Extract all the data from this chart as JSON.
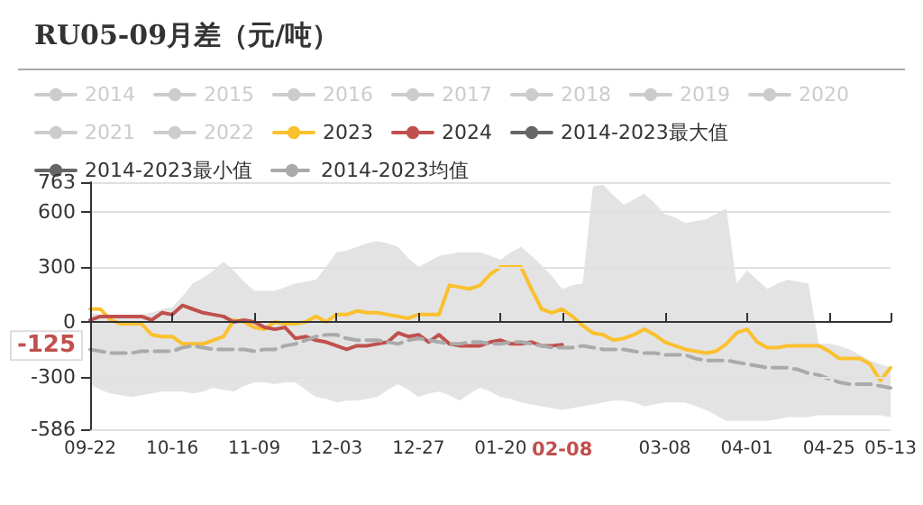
{
  "chart_data": {
    "type": "line",
    "title": "RU05-09月差（元/吨）",
    "categories": [
      "09-22",
      null,
      null,
      null,
      null,
      null,
      null,
      null,
      "10-16",
      null,
      null,
      null,
      null,
      null,
      null,
      null,
      "11-09",
      null,
      null,
      null,
      null,
      null,
      null,
      null,
      "12-03",
      null,
      null,
      null,
      null,
      null,
      null,
      null,
      "12-27",
      null,
      null,
      null,
      null,
      null,
      null,
      null,
      "01-20",
      null,
      null,
      null,
      null,
      null,
      "02-08",
      null,
      null,
      null,
      null,
      null,
      null,
      null,
      null,
      null,
      "03-08",
      null,
      null,
      null,
      null,
      null,
      null,
      null,
      "04-01",
      null,
      null,
      null,
      null,
      null,
      null,
      null,
      "04-25",
      null,
      null,
      null,
      null,
      null,
      "05-13"
    ],
    "series": [
      {
        "name": "2014",
        "color": "#cccccc",
        "values": [
          null,
          null,
          null,
          null,
          null,
          null,
          null,
          null,
          null,
          null,
          null,
          null,
          null,
          null,
          null,
          null,
          null,
          null,
          null,
          null,
          null,
          null,
          null,
          null,
          null,
          null,
          null,
          null,
          null,
          null,
          null,
          null,
          null,
          null,
          null,
          null,
          null,
          null,
          null,
          null,
          null,
          null,
          null,
          null,
          null,
          null,
          null,
          null,
          null,
          null,
          null,
          null,
          null,
          null,
          null,
          null,
          null,
          null,
          null,
          null,
          null,
          null,
          null,
          null,
          null,
          null,
          null,
          null,
          null,
          null,
          null,
          null,
          null,
          null,
          null,
          null,
          null,
          null,
          null
        ]
      },
      {
        "name": "2015",
        "color": "#cccccc",
        "values": [
          null,
          null,
          null,
          null,
          null,
          null,
          null,
          null,
          null,
          null,
          null,
          null,
          null,
          null,
          null,
          null,
          null,
          null,
          null,
          null,
          null,
          null,
          null,
          null,
          null,
          null,
          null,
          null,
          null,
          null,
          null,
          null,
          null,
          null,
          null,
          null,
          null,
          null,
          null,
          null,
          null,
          null,
          null,
          null,
          null,
          null,
          null,
          null,
          null,
          null,
          null,
          null,
          null,
          null,
          null,
          null,
          null,
          null,
          null,
          null,
          null,
          null,
          null,
          null,
          null,
          null,
          null,
          null,
          null,
          null,
          null,
          null,
          null,
          null,
          null,
          null,
          null,
          null,
          null
        ]
      },
      {
        "name": "2016",
        "color": "#cccccc",
        "values": [
          null,
          null,
          null,
          null,
          null,
          null,
          null,
          null,
          null,
          null,
          null,
          null,
          null,
          null,
          null,
          null,
          null,
          null,
          null,
          null,
          null,
          null,
          null,
          null,
          null,
          null,
          null,
          null,
          null,
          null,
          null,
          null,
          null,
          null,
          null,
          null,
          null,
          null,
          null,
          null,
          null,
          null,
          null,
          null,
          null,
          null,
          null,
          null,
          null,
          null,
          null,
          null,
          null,
          null,
          null,
          null,
          null,
          null,
          null,
          null,
          null,
          null,
          null,
          null,
          null,
          null,
          null,
          null,
          null,
          null,
          null,
          null,
          null,
          null,
          null,
          null,
          null,
          null,
          null
        ]
      },
      {
        "name": "2017",
        "color": "#cccccc",
        "values": [
          null,
          null,
          null,
          null,
          null,
          null,
          null,
          null,
          null,
          null,
          null,
          null,
          null,
          null,
          null,
          null,
          null,
          null,
          null,
          null,
          null,
          null,
          null,
          null,
          null,
          null,
          null,
          null,
          null,
          null,
          null,
          null,
          null,
          null,
          null,
          null,
          null,
          null,
          null,
          null,
          null,
          null,
          null,
          null,
          null,
          null,
          null,
          null,
          null,
          null,
          null,
          null,
          null,
          null,
          null,
          null,
          null,
          null,
          null,
          null,
          null,
          null,
          null,
          null,
          null,
          null,
          null,
          null,
          null,
          null,
          null,
          null,
          null,
          null,
          null,
          null,
          null,
          null,
          null
        ]
      },
      {
        "name": "2018",
        "color": "#cccccc",
        "values": [
          null,
          null,
          null,
          null,
          null,
          null,
          null,
          null,
          null,
          null,
          null,
          null,
          null,
          null,
          null,
          null,
          null,
          null,
          null,
          null,
          null,
          null,
          null,
          null,
          null,
          null,
          null,
          null,
          null,
          null,
          null,
          null,
          null,
          null,
          null,
          null,
          null,
          null,
          null,
          null,
          null,
          null,
          null,
          null,
          null,
          null,
          null,
          null,
          null,
          null,
          null,
          null,
          null,
          null,
          null,
          null,
          null,
          null,
          null,
          null,
          null,
          null,
          null,
          null,
          null,
          null,
          null,
          null,
          null,
          null,
          null,
          null,
          null,
          null,
          null,
          null,
          null,
          null,
          null
        ]
      },
      {
        "name": "2019",
        "color": "#cccccc",
        "values": [
          null,
          null,
          null,
          null,
          null,
          null,
          null,
          null,
          null,
          null,
          null,
          null,
          null,
          null,
          null,
          null,
          null,
          null,
          null,
          null,
          null,
          null,
          null,
          null,
          null,
          null,
          null,
          null,
          null,
          null,
          null,
          null,
          null,
          null,
          null,
          null,
          null,
          null,
          null,
          null,
          null,
          null,
          null,
          null,
          null,
          null,
          null,
          null,
          null,
          null,
          null,
          null,
          null,
          null,
          null,
          null,
          null,
          null,
          null,
          null,
          null,
          null,
          null,
          null,
          null,
          null,
          null,
          null,
          null,
          null,
          null,
          null,
          null,
          null,
          null,
          null,
          null,
          null,
          null
        ]
      },
      {
        "name": "2020",
        "color": "#cccccc",
        "values": [
          null,
          null,
          null,
          null,
          null,
          null,
          null,
          null,
          null,
          null,
          null,
          null,
          null,
          null,
          null,
          null,
          null,
          null,
          null,
          null,
          null,
          null,
          null,
          null,
          null,
          null,
          null,
          null,
          null,
          null,
          null,
          null,
          null,
          null,
          null,
          null,
          null,
          null,
          null,
          null,
          null,
          null,
          null,
          null,
          null,
          null,
          null,
          null,
          null,
          null,
          null,
          null,
          null,
          null,
          null,
          null,
          null,
          null,
          null,
          null,
          null,
          null,
          null,
          null,
          null,
          null,
          null,
          null,
          null,
          null,
          null,
          null,
          null,
          null,
          null,
          null,
          null,
          null,
          null
        ]
      },
      {
        "name": "2021",
        "color": "#cccccc",
        "values": [
          null,
          null,
          null,
          null,
          null,
          null,
          null,
          null,
          null,
          null,
          null,
          null,
          null,
          null,
          null,
          null,
          null,
          null,
          null,
          null,
          null,
          null,
          null,
          null,
          null,
          null,
          null,
          null,
          null,
          null,
          null,
          null,
          null,
          null,
          null,
          null,
          null,
          null,
          null,
          null,
          null,
          null,
          null,
          null,
          null,
          null,
          null,
          null,
          null,
          null,
          null,
          null,
          null,
          null,
          null,
          null,
          null,
          null,
          null,
          null,
          null,
          null,
          null,
          null,
          null,
          null,
          null,
          null,
          null,
          null,
          null,
          null,
          null,
          null,
          null,
          null,
          null,
          null,
          null
        ]
      },
      {
        "name": "2022",
        "color": "#cccccc",
        "values": [
          null,
          null,
          null,
          null,
          null,
          null,
          null,
          null,
          null,
          null,
          null,
          null,
          null,
          null,
          null,
          null,
          null,
          null,
          null,
          null,
          null,
          null,
          null,
          null,
          null,
          null,
          null,
          null,
          null,
          null,
          null,
          null,
          null,
          null,
          null,
          null,
          null,
          null,
          null,
          null,
          null,
          null,
          null,
          null,
          null,
          null,
          null,
          null,
          null,
          null,
          null,
          null,
          null,
          null,
          null,
          null,
          null,
          null,
          null,
          null,
          null,
          null,
          null,
          null,
          null,
          null,
          null,
          null,
          null,
          null,
          null,
          null,
          null,
          null,
          null,
          null,
          null,
          null,
          null
        ]
      },
      {
        "name": "2023",
        "color": "#fbc02d",
        "values": [
          70,
          70,
          10,
          -10,
          -10,
          -10,
          -70,
          -80,
          -80,
          -120,
          -120,
          -120,
          -100,
          -80,
          10,
          0,
          -30,
          -40,
          0,
          -10,
          -10,
          0,
          30,
          0,
          40,
          40,
          60,
          50,
          50,
          40,
          30,
          20,
          40,
          40,
          40,
          200,
          190,
          180,
          200,
          260,
          300,
          300,
          300,
          180,
          70,
          50,
          70,
          30,
          -20,
          -60,
          -70,
          -100,
          -90,
          -70,
          -40,
          -70,
          -110,
          -130,
          -150,
          -160,
          -170,
          -160,
          -120,
          -60,
          -40,
          -110,
          -140,
          -140,
          -130,
          -130,
          -130,
          -130,
          -160,
          -200,
          -200,
          -200,
          -230,
          -320,
          -250
        ]
      },
      {
        "name": "2024",
        "color": "#c0504d",
        "values": [
          10,
          30,
          30,
          30,
          30,
          30,
          10,
          50,
          40,
          90,
          70,
          50,
          40,
          30,
          0,
          10,
          0,
          -30,
          -40,
          -30,
          -90,
          -80,
          -100,
          -110,
          -130,
          -150,
          -130,
          -130,
          -120,
          -110,
          -60,
          -80,
          -70,
          -110,
          -70,
          -120,
          -130,
          -130,
          -130,
          -110,
          -100,
          -120,
          -120,
          -110,
          -130,
          -130,
          -125,
          null,
          null,
          null,
          null,
          null,
          null,
          null,
          null,
          null,
          null,
          null,
          null,
          null,
          null,
          null,
          null,
          null,
          null,
          null,
          null,
          null,
          null,
          null,
          null,
          null,
          null,
          null,
          null,
          null,
          null,
          null,
          null
        ]
      },
      {
        "name": "2014-2023最大值",
        "color": "#666666",
        "values": [
          null,
          null,
          null,
          null,
          null,
          null,
          null,
          null,
          null,
          null,
          null,
          null,
          null,
          null,
          null,
          null,
          null,
          null,
          null,
          null,
          null,
          null,
          null,
          null,
          null,
          null,
          null,
          null,
          null,
          null,
          null,
          null,
          null,
          null,
          null,
          null,
          null,
          null,
          null,
          null,
          null,
          null,
          null,
          null,
          null,
          null,
          null,
          null,
          null,
          null,
          null,
          null,
          null,
          null,
          null,
          null,
          null,
          null,
          null,
          null,
          null,
          null,
          null,
          null,
          null,
          null,
          null,
          null,
          null,
          null,
          null,
          null,
          null,
          null,
          null,
          null,
          null,
          null,
          null
        ]
      },
      {
        "name": "2014-2023最小值",
        "color": "#666666",
        "values": [
          null,
          null,
          null,
          null,
          null,
          null,
          null,
          null,
          null,
          null,
          null,
          null,
          null,
          null,
          null,
          null,
          null,
          null,
          null,
          null,
          null,
          null,
          null,
          null,
          null,
          null,
          null,
          null,
          null,
          null,
          null,
          null,
          null,
          null,
          null,
          null,
          null,
          null,
          null,
          null,
          null,
          null,
          null,
          null,
          null,
          null,
          null,
          null,
          null,
          null,
          null,
          null,
          null,
          null,
          null,
          null,
          null,
          null,
          null,
          null,
          null,
          null,
          null,
          null,
          null,
          null,
          null,
          null,
          null,
          null,
          null,
          null,
          null,
          null,
          null,
          null,
          null,
          null,
          null
        ]
      },
      {
        "name": "2014-2023均值",
        "color": "#aaaaaa",
        "line_style": "dashed",
        "upper": [
          50,
          40,
          30,
          30,
          30,
          40,
          50,
          70,
          80,
          140,
          210,
          240,
          280,
          330,
          280,
          220,
          170,
          170,
          170,
          190,
          210,
          220,
          230,
          300,
          380,
          390,
          410,
          430,
          440,
          430,
          410,
          350,
          300,
          330,
          360,
          370,
          380,
          380,
          380,
          360,
          340,
          380,
          410,
          360,
          310,
          250,
          180,
          200,
          210,
          740,
          750,
          690,
          640,
          670,
          700,
          650,
          590,
          570,
          540,
          550,
          560,
          590,
          620,
          210,
          280,
          230,
          180,
          210,
          230,
          220,
          210,
          -120,
          -120,
          -130,
          -150,
          -180,
          -210,
          -230,
          -250
        ],
        "lower": [
          -340,
          -370,
          -390,
          -400,
          -410,
          -400,
          -390,
          -380,
          -380,
          -380,
          -390,
          -380,
          -360,
          -370,
          -380,
          -350,
          -330,
          -330,
          -340,
          -330,
          -330,
          -370,
          -410,
          -420,
          -440,
          -430,
          -430,
          -420,
          -410,
          -370,
          -340,
          -370,
          -410,
          -390,
          -380,
          -400,
          -430,
          -390,
          -360,
          -380,
          -410,
          -420,
          -440,
          -450,
          -460,
          -470,
          -480,
          -470,
          -460,
          -450,
          -440,
          -430,
          -430,
          -440,
          -460,
          -450,
          -440,
          -440,
          -440,
          -460,
          -480,
          -510,
          -540,
          -540,
          -540,
          -540,
          -540,
          -530,
          -520,
          -520,
          -520,
          -510,
          -510,
          -510,
          -510,
          -510,
          -510,
          -510,
          -520
        ],
        "values": [
          -150,
          -160,
          -170,
          -170,
          -170,
          -160,
          -160,
          -160,
          -160,
          -140,
          -130,
          -140,
          -150,
          -150,
          -150,
          -150,
          -160,
          -150,
          -150,
          -130,
          -120,
          -100,
          -80,
          -70,
          -70,
          -90,
          -100,
          -100,
          -100,
          -110,
          -120,
          -100,
          -90,
          -100,
          -110,
          -120,
          -120,
          -110,
          -110,
          -120,
          -120,
          -110,
          -110,
          -120,
          -130,
          -140,
          -140,
          -140,
          -130,
          -140,
          -150,
          -150,
          -150,
          -160,
          -170,
          -170,
          -180,
          -180,
          -180,
          -200,
          -210,
          -210,
          -210,
          -220,
          -230,
          -240,
          -250,
          -250,
          -250,
          -260,
          -280,
          -290,
          -310,
          -330,
          -340,
          -340,
          -340,
          -350,
          -360
        ]
      }
    ],
    "ylim": [
      -586,
      763
    ],
    "yticks": [
      -586,
      -300,
      0,
      300,
      600,
      763
    ],
    "annotations": [
      "-125"
    ],
    "grid": "y",
    "legend": "top",
    "marker": "none"
  }
}
